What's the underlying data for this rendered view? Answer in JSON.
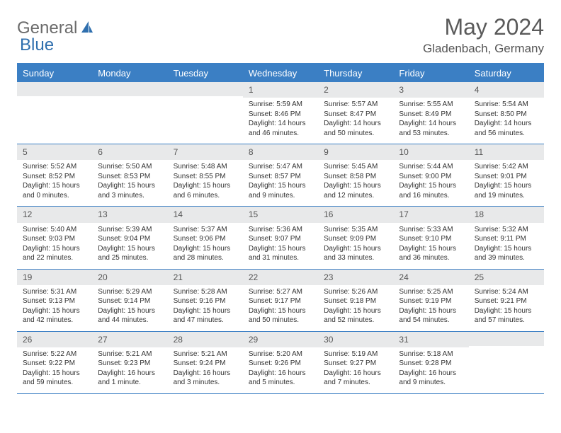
{
  "logo": {
    "part1": "General",
    "part2": "Blue"
  },
  "title": "May 2024",
  "location": "Gladenbach, Germany",
  "colors": {
    "header_bg": "#3b7fc4",
    "header_text": "#ffffff",
    "daynum_bg": "#e8e9ea",
    "border": "#3b7fc4",
    "logo_gray": "#6b6b6b",
    "logo_blue": "#2f6fae"
  },
  "weekdays": [
    "Sunday",
    "Monday",
    "Tuesday",
    "Wednesday",
    "Thursday",
    "Friday",
    "Saturday"
  ],
  "weeks": [
    [
      {
        "n": "",
        "sr": "",
        "ss": "",
        "dl": ""
      },
      {
        "n": "",
        "sr": "",
        "ss": "",
        "dl": ""
      },
      {
        "n": "",
        "sr": "",
        "ss": "",
        "dl": ""
      },
      {
        "n": "1",
        "sr": "Sunrise: 5:59 AM",
        "ss": "Sunset: 8:46 PM",
        "dl": "Daylight: 14 hours and 46 minutes."
      },
      {
        "n": "2",
        "sr": "Sunrise: 5:57 AM",
        "ss": "Sunset: 8:47 PM",
        "dl": "Daylight: 14 hours and 50 minutes."
      },
      {
        "n": "3",
        "sr": "Sunrise: 5:55 AM",
        "ss": "Sunset: 8:49 PM",
        "dl": "Daylight: 14 hours and 53 minutes."
      },
      {
        "n": "4",
        "sr": "Sunrise: 5:54 AM",
        "ss": "Sunset: 8:50 PM",
        "dl": "Daylight: 14 hours and 56 minutes."
      }
    ],
    [
      {
        "n": "5",
        "sr": "Sunrise: 5:52 AM",
        "ss": "Sunset: 8:52 PM",
        "dl": "Daylight: 15 hours and 0 minutes."
      },
      {
        "n": "6",
        "sr": "Sunrise: 5:50 AM",
        "ss": "Sunset: 8:53 PM",
        "dl": "Daylight: 15 hours and 3 minutes."
      },
      {
        "n": "7",
        "sr": "Sunrise: 5:48 AM",
        "ss": "Sunset: 8:55 PM",
        "dl": "Daylight: 15 hours and 6 minutes."
      },
      {
        "n": "8",
        "sr": "Sunrise: 5:47 AM",
        "ss": "Sunset: 8:57 PM",
        "dl": "Daylight: 15 hours and 9 minutes."
      },
      {
        "n": "9",
        "sr": "Sunrise: 5:45 AM",
        "ss": "Sunset: 8:58 PM",
        "dl": "Daylight: 15 hours and 12 minutes."
      },
      {
        "n": "10",
        "sr": "Sunrise: 5:44 AM",
        "ss": "Sunset: 9:00 PM",
        "dl": "Daylight: 15 hours and 16 minutes."
      },
      {
        "n": "11",
        "sr": "Sunrise: 5:42 AM",
        "ss": "Sunset: 9:01 PM",
        "dl": "Daylight: 15 hours and 19 minutes."
      }
    ],
    [
      {
        "n": "12",
        "sr": "Sunrise: 5:40 AM",
        "ss": "Sunset: 9:03 PM",
        "dl": "Daylight: 15 hours and 22 minutes."
      },
      {
        "n": "13",
        "sr": "Sunrise: 5:39 AM",
        "ss": "Sunset: 9:04 PM",
        "dl": "Daylight: 15 hours and 25 minutes."
      },
      {
        "n": "14",
        "sr": "Sunrise: 5:37 AM",
        "ss": "Sunset: 9:06 PM",
        "dl": "Daylight: 15 hours and 28 minutes."
      },
      {
        "n": "15",
        "sr": "Sunrise: 5:36 AM",
        "ss": "Sunset: 9:07 PM",
        "dl": "Daylight: 15 hours and 31 minutes."
      },
      {
        "n": "16",
        "sr": "Sunrise: 5:35 AM",
        "ss": "Sunset: 9:09 PM",
        "dl": "Daylight: 15 hours and 33 minutes."
      },
      {
        "n": "17",
        "sr": "Sunrise: 5:33 AM",
        "ss": "Sunset: 9:10 PM",
        "dl": "Daylight: 15 hours and 36 minutes."
      },
      {
        "n": "18",
        "sr": "Sunrise: 5:32 AM",
        "ss": "Sunset: 9:11 PM",
        "dl": "Daylight: 15 hours and 39 minutes."
      }
    ],
    [
      {
        "n": "19",
        "sr": "Sunrise: 5:31 AM",
        "ss": "Sunset: 9:13 PM",
        "dl": "Daylight: 15 hours and 42 minutes."
      },
      {
        "n": "20",
        "sr": "Sunrise: 5:29 AM",
        "ss": "Sunset: 9:14 PM",
        "dl": "Daylight: 15 hours and 44 minutes."
      },
      {
        "n": "21",
        "sr": "Sunrise: 5:28 AM",
        "ss": "Sunset: 9:16 PM",
        "dl": "Daylight: 15 hours and 47 minutes."
      },
      {
        "n": "22",
        "sr": "Sunrise: 5:27 AM",
        "ss": "Sunset: 9:17 PM",
        "dl": "Daylight: 15 hours and 50 minutes."
      },
      {
        "n": "23",
        "sr": "Sunrise: 5:26 AM",
        "ss": "Sunset: 9:18 PM",
        "dl": "Daylight: 15 hours and 52 minutes."
      },
      {
        "n": "24",
        "sr": "Sunrise: 5:25 AM",
        "ss": "Sunset: 9:19 PM",
        "dl": "Daylight: 15 hours and 54 minutes."
      },
      {
        "n": "25",
        "sr": "Sunrise: 5:24 AM",
        "ss": "Sunset: 9:21 PM",
        "dl": "Daylight: 15 hours and 57 minutes."
      }
    ],
    [
      {
        "n": "26",
        "sr": "Sunrise: 5:22 AM",
        "ss": "Sunset: 9:22 PM",
        "dl": "Daylight: 15 hours and 59 minutes."
      },
      {
        "n": "27",
        "sr": "Sunrise: 5:21 AM",
        "ss": "Sunset: 9:23 PM",
        "dl": "Daylight: 16 hours and 1 minute."
      },
      {
        "n": "28",
        "sr": "Sunrise: 5:21 AM",
        "ss": "Sunset: 9:24 PM",
        "dl": "Daylight: 16 hours and 3 minutes."
      },
      {
        "n": "29",
        "sr": "Sunrise: 5:20 AM",
        "ss": "Sunset: 9:26 PM",
        "dl": "Daylight: 16 hours and 5 minutes."
      },
      {
        "n": "30",
        "sr": "Sunrise: 5:19 AM",
        "ss": "Sunset: 9:27 PM",
        "dl": "Daylight: 16 hours and 7 minutes."
      },
      {
        "n": "31",
        "sr": "Sunrise: 5:18 AM",
        "ss": "Sunset: 9:28 PM",
        "dl": "Daylight: 16 hours and 9 minutes."
      },
      {
        "n": "",
        "sr": "",
        "ss": "",
        "dl": ""
      }
    ]
  ]
}
